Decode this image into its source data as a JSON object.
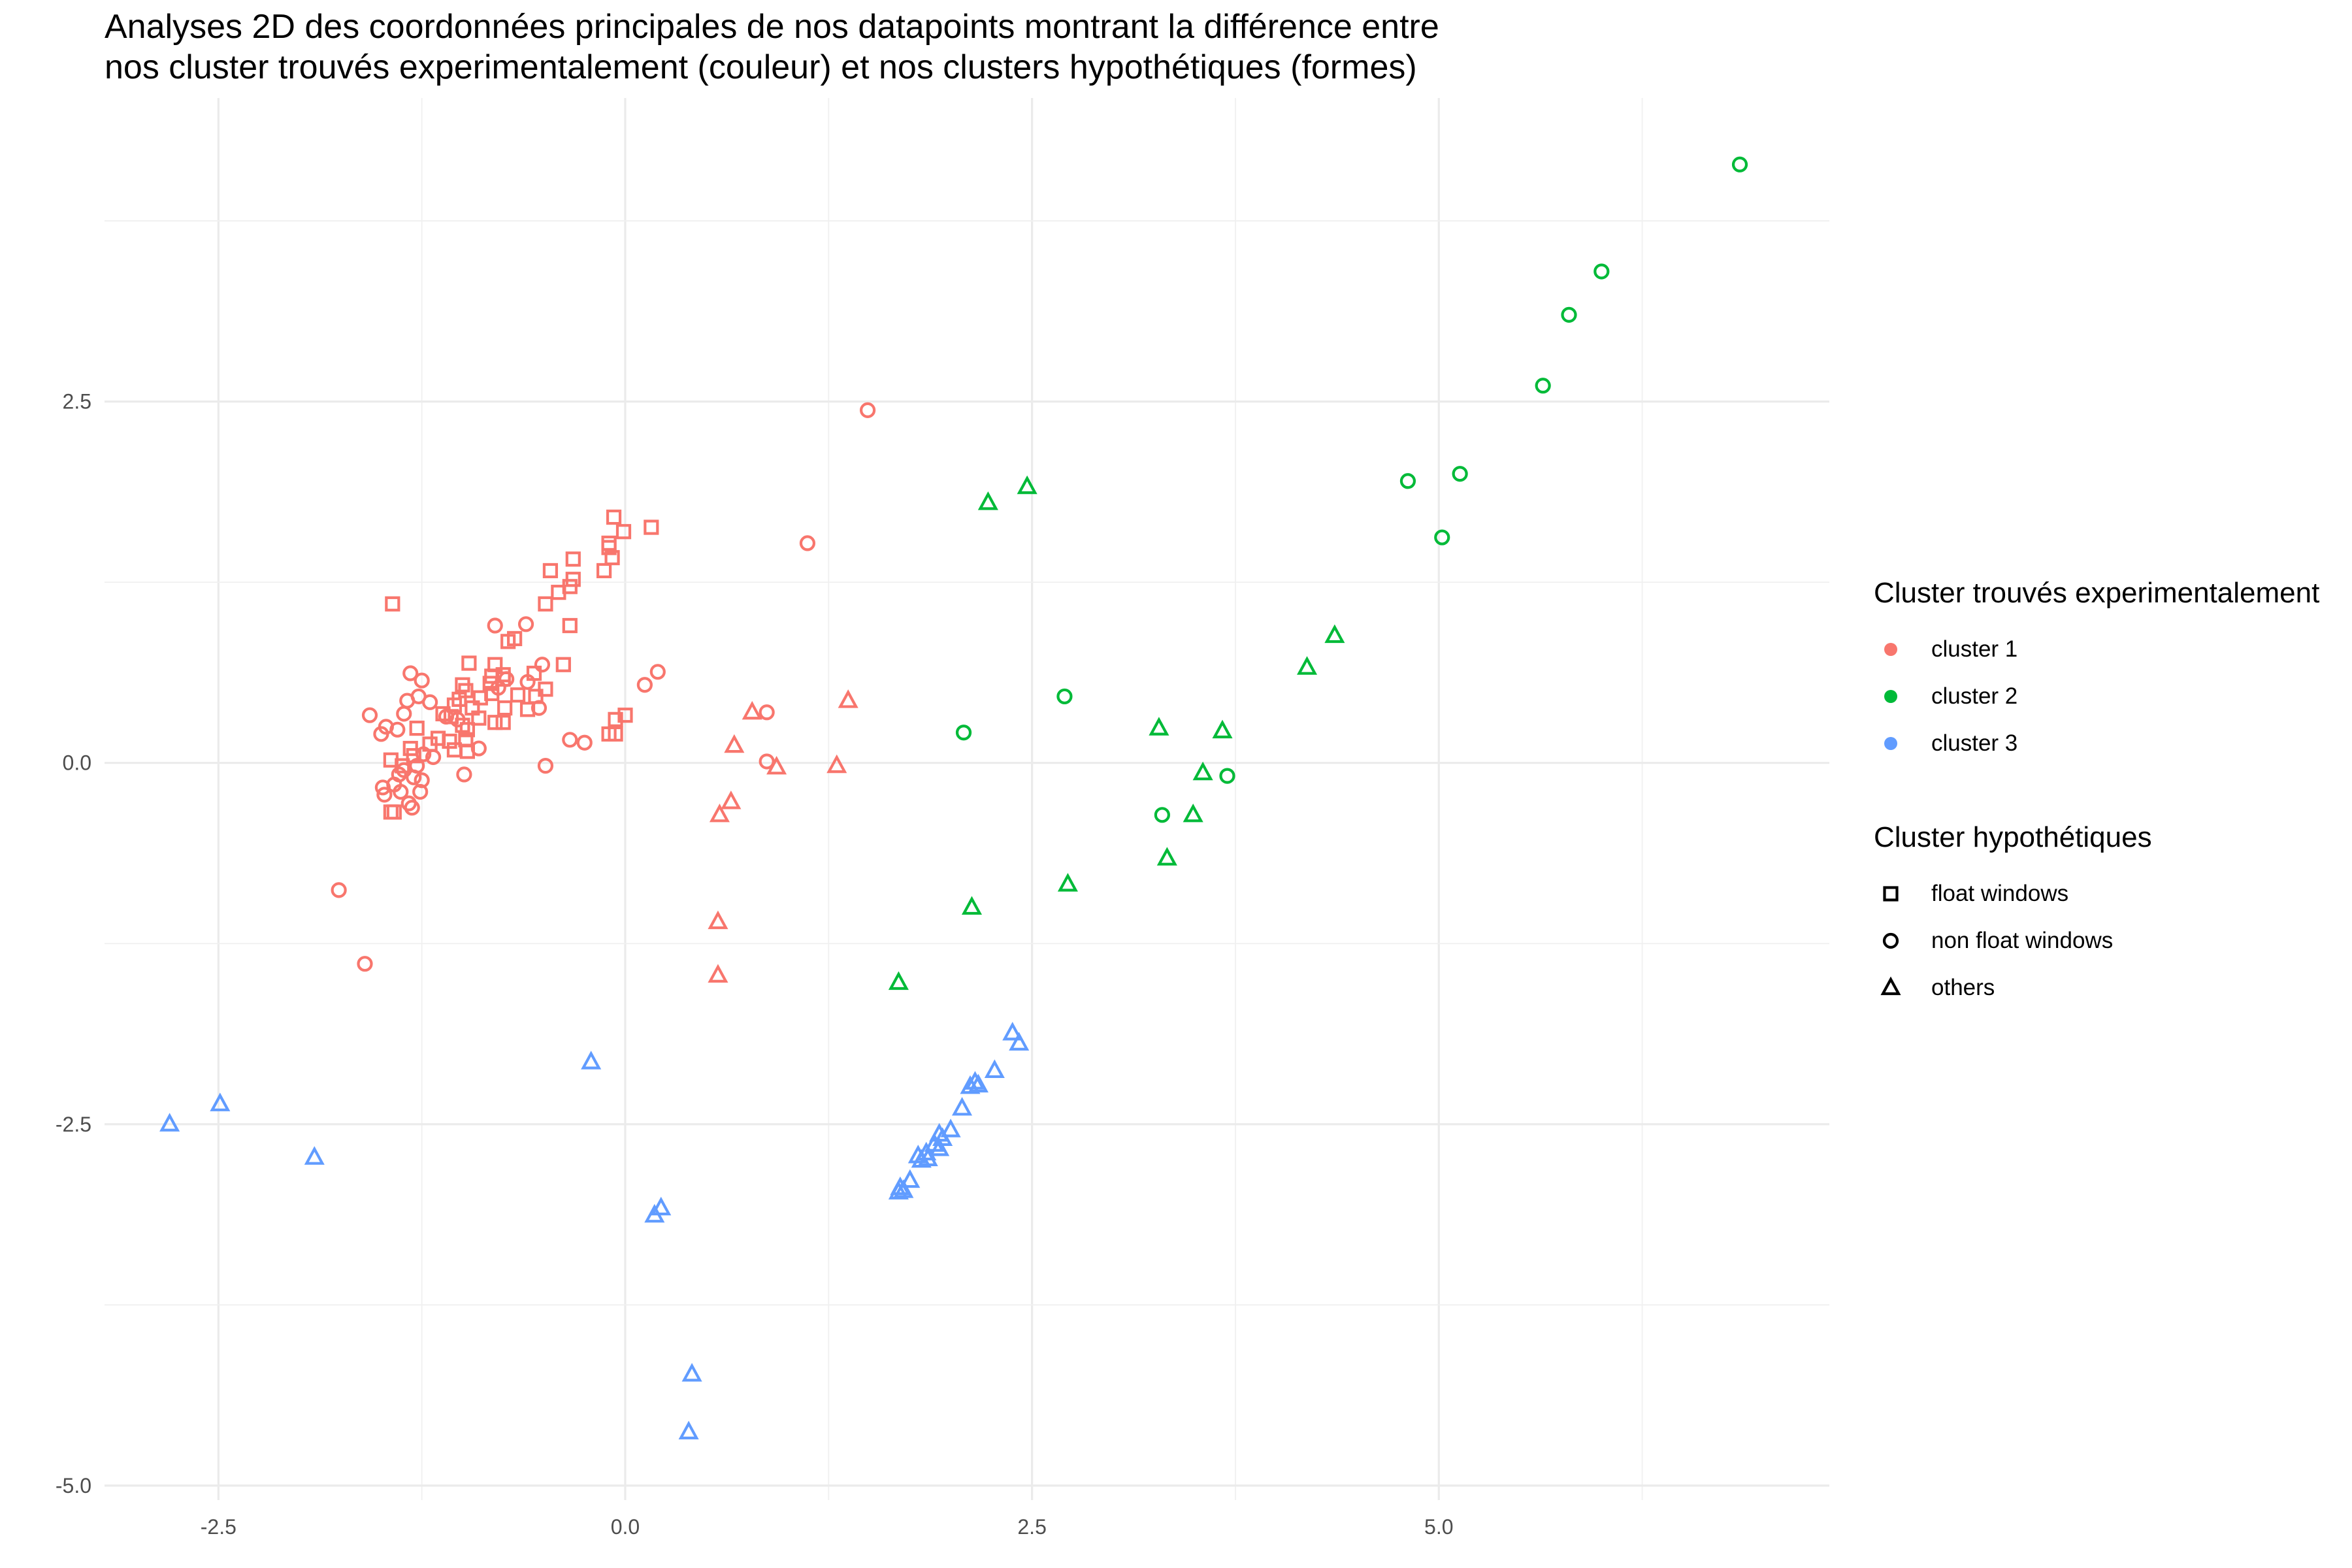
{
  "chart_data": {
    "type": "scatter",
    "title": "Analyses 2D des coordonnées principales de nos datapoints montrant la différence entre\nnos cluster trouvés experimentalement (couleur) et nos clusters hypothétiques (formes)",
    "xlabel": "",
    "ylabel": "",
    "xlim": [
      -3.2,
      7.4
    ],
    "ylim": [
      -5.1,
      4.6
    ],
    "grid": true,
    "x_ticks": [
      -2.5,
      0.0,
      2.5,
      5.0
    ],
    "x_tick_labels": [
      "-2.5",
      "0.0",
      "2.5",
      "5.0"
    ],
    "y_ticks": [
      2.5,
      0.0,
      -2.5,
      -5.0
    ],
    "y_tick_labels": [
      "2.5",
      "0.0",
      "-2.5",
      "-5.0"
    ],
    "legend_placement": "right",
    "legends": {
      "color": {
        "title": "Cluster trouvés experimentalement",
        "items": [
          {
            "label": "cluster 1",
            "color": "#f8766d"
          },
          {
            "label": "cluster 2",
            "color": "#00ba38"
          },
          {
            "label": "cluster 3",
            "color": "#619cff"
          }
        ]
      },
      "shape": {
        "title": "Cluster hypothétiques",
        "items": [
          {
            "label": "float windows",
            "shape": "square"
          },
          {
            "label": "non float windows",
            "shape": "circle"
          },
          {
            "label": "others",
            "shape": "triangle"
          }
        ]
      }
    },
    "series": [
      {
        "name": "cluster 1 / float windows",
        "color": "#f8766d",
        "shape": "square",
        "points": [
          [
            -1.43,
            1.1
          ],
          [
            -0.07,
            1.7
          ],
          [
            -0.01,
            1.6
          ],
          [
            0.16,
            1.63
          ],
          [
            -0.1,
            1.52
          ],
          [
            -0.1,
            1.49
          ],
          [
            -0.08,
            1.42
          ],
          [
            -0.32,
            1.41
          ],
          [
            -0.46,
            1.33
          ],
          [
            -0.13,
            1.33
          ],
          [
            -0.32,
            1.27
          ],
          [
            -0.34,
            1.22
          ],
          [
            -0.41,
            1.18
          ],
          [
            -0.49,
            1.1
          ],
          [
            -0.34,
            0.95
          ],
          [
            -0.68,
            0.86
          ],
          [
            -0.72,
            0.84
          ],
          [
            -0.8,
            0.68
          ],
          [
            -0.96,
            0.69
          ],
          [
            -0.75,
            0.61
          ],
          [
            -0.82,
            0.6
          ],
          [
            -0.75,
            0.58
          ],
          [
            -0.56,
            0.62
          ],
          [
            -0.38,
            0.68
          ],
          [
            -0.83,
            0.55
          ],
          [
            -1.0,
            0.54
          ],
          [
            -0.98,
            0.5
          ],
          [
            -0.82,
            0.48
          ],
          [
            -0.66,
            0.47
          ],
          [
            -0.55,
            0.46
          ],
          [
            -0.49,
            0.51
          ],
          [
            -0.89,
            0.45
          ],
          [
            -1.02,
            0.44
          ],
          [
            -1.05,
            0.4
          ],
          [
            -0.94,
            0.38
          ],
          [
            -0.74,
            0.38
          ],
          [
            -0.6,
            0.37
          ],
          [
            -1.12,
            0.34
          ],
          [
            -1.07,
            0.32
          ],
          [
            -0.9,
            0.31
          ],
          [
            -0.8,
            0.28
          ],
          [
            -0.75,
            0.28
          ],
          [
            -0.06,
            0.3
          ],
          [
            0.0,
            0.33
          ],
          [
            -1.0,
            0.26
          ],
          [
            -0.97,
            0.23
          ],
          [
            -1.28,
            0.24
          ],
          [
            -1.15,
            0.17
          ],
          [
            -1.08,
            0.15
          ],
          [
            -0.98,
            0.16
          ],
          [
            -0.1,
            0.2
          ],
          [
            -0.06,
            0.2
          ],
          [
            -1.2,
            0.13
          ],
          [
            -1.32,
            0.1
          ],
          [
            -1.05,
            0.09
          ],
          [
            -0.97,
            0.08
          ],
          [
            -1.3,
            0.05
          ],
          [
            -1.44,
            0.02
          ],
          [
            -1.44,
            -0.34
          ],
          [
            -1.42,
            -0.34
          ],
          [
            -1.37,
            -0.02
          ]
        ]
      },
      {
        "name": "cluster 1 / non float windows",
        "color": "#f8766d",
        "shape": "circle",
        "points": [
          [
            1.49,
            2.44
          ],
          [
            1.12,
            1.52
          ],
          [
            -0.8,
            0.95
          ],
          [
            -0.61,
            0.96
          ],
          [
            0.2,
            0.63
          ],
          [
            0.12,
            0.54
          ],
          [
            -1.32,
            0.62
          ],
          [
            -1.25,
            0.57
          ],
          [
            -0.51,
            0.68
          ],
          [
            -0.73,
            0.58
          ],
          [
            -0.6,
            0.56
          ],
          [
            -0.78,
            0.52
          ],
          [
            -1.27,
            0.46
          ],
          [
            -1.34,
            0.43
          ],
          [
            -1.2,
            0.42
          ],
          [
            -0.53,
            0.38
          ],
          [
            -1.57,
            0.33
          ],
          [
            -1.36,
            0.34
          ],
          [
            -1.1,
            0.32
          ],
          [
            -1.03,
            0.3
          ],
          [
            -1.47,
            0.25
          ],
          [
            -1.4,
            0.23
          ],
          [
            -1.5,
            0.2
          ],
          [
            -0.34,
            0.16
          ],
          [
            -0.25,
            0.14
          ],
          [
            -0.9,
            0.1
          ],
          [
            -1.24,
            0.06
          ],
          [
            -1.18,
            0.04
          ],
          [
            -1.28,
            -0.02
          ],
          [
            -1.36,
            -0.05
          ],
          [
            -1.39,
            -0.08
          ],
          [
            -1.3,
            -0.1
          ],
          [
            -1.25,
            -0.12
          ],
          [
            -0.99,
            -0.08
          ],
          [
            -0.49,
            -0.02
          ],
          [
            0.87,
            0.35
          ],
          [
            0.87,
            0.01
          ],
          [
            -1.42,
            -0.15
          ],
          [
            -1.49,
            -0.17
          ],
          [
            -1.38,
            -0.2
          ],
          [
            -1.48,
            -0.22
          ],
          [
            -1.26,
            -0.2
          ],
          [
            -1.33,
            -0.28
          ],
          [
            -1.31,
            -0.31
          ],
          [
            -1.76,
            -0.88
          ],
          [
            -1.6,
            -1.39
          ]
        ]
      },
      {
        "name": "cluster 1 / others",
        "color": "#f8766d",
        "shape": "triangle",
        "points": [
          [
            1.37,
            0.43
          ],
          [
            0.78,
            0.35
          ],
          [
            0.67,
            0.12
          ],
          [
            1.3,
            -0.02
          ],
          [
            0.93,
            -0.03
          ],
          [
            0.65,
            -0.27
          ],
          [
            0.58,
            -0.36
          ],
          [
            0.57,
            -1.1
          ],
          [
            0.57,
            -1.47
          ]
        ]
      },
      {
        "name": "cluster 2 / non float windows",
        "color": "#00ba38",
        "shape": "circle",
        "points": [
          [
            6.85,
            4.14
          ],
          [
            6.0,
            3.4
          ],
          [
            5.8,
            3.1
          ],
          [
            5.64,
            2.61
          ],
          [
            4.81,
            1.95
          ],
          [
            5.13,
            2.0
          ],
          [
            5.02,
            1.56
          ],
          [
            2.7,
            0.46
          ],
          [
            2.08,
            0.21
          ],
          [
            3.7,
            -0.09
          ],
          [
            3.3,
            -0.36
          ]
        ]
      },
      {
        "name": "cluster 2 / others",
        "color": "#00ba38",
        "shape": "triangle",
        "points": [
          [
            2.23,
            1.8
          ],
          [
            2.47,
            1.91
          ],
          [
            4.36,
            0.88
          ],
          [
            4.19,
            0.66
          ],
          [
            3.28,
            0.24
          ],
          [
            3.67,
            0.22
          ],
          [
            3.55,
            -0.07
          ],
          [
            3.49,
            -0.36
          ],
          [
            3.33,
            -0.66
          ],
          [
            2.72,
            -0.84
          ],
          [
            2.13,
            -1.0
          ],
          [
            1.68,
            -1.52
          ]
        ]
      },
      {
        "name": "cluster 3 / others",
        "color": "#619cff",
        "shape": "triangle",
        "points": [
          [
            -2.8,
            -2.5
          ],
          [
            -2.49,
            -2.36
          ],
          [
            -1.91,
            -2.73
          ],
          [
            -0.21,
            -2.07
          ],
          [
            0.18,
            -3.13
          ],
          [
            0.22,
            -3.08
          ],
          [
            0.41,
            -4.23
          ],
          [
            0.39,
            -4.63
          ],
          [
            2.38,
            -1.87
          ],
          [
            2.42,
            -1.94
          ],
          [
            2.27,
            -2.13
          ],
          [
            2.15,
            -2.21
          ],
          [
            2.12,
            -2.24
          ],
          [
            2.17,
            -2.23
          ],
          [
            2.07,
            -2.39
          ],
          [
            2.0,
            -2.54
          ],
          [
            1.93,
            -2.57
          ],
          [
            1.95,
            -2.6
          ],
          [
            1.9,
            -2.64
          ],
          [
            1.93,
            -2.67
          ],
          [
            1.85,
            -2.7
          ],
          [
            1.8,
            -2.72
          ],
          [
            1.86,
            -2.74
          ],
          [
            1.82,
            -2.75
          ],
          [
            1.75,
            -2.89
          ],
          [
            1.69,
            -2.94
          ],
          [
            1.71,
            -2.96
          ],
          [
            1.68,
            -2.97
          ]
        ]
      }
    ]
  }
}
